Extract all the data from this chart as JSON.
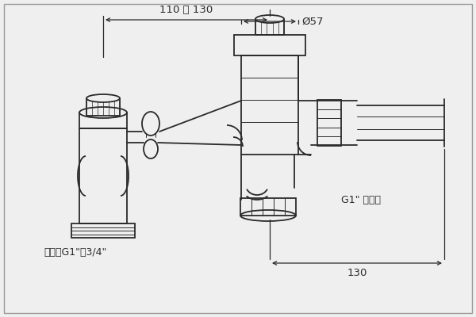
{
  "bg_color": "#efefef",
  "line_color": "#2a2a2a",
  "dim_color": "#2a2a2a",
  "dim_top_text": "110 ～ 130",
  "dim_phi_text": "Ø57",
  "dim_bottom_text": "130",
  "label_inlet": "进水口G1\"～3/4\"",
  "label_outlet": "G1\" 下水口",
  "figsize": [
    6.0,
    4.0
  ],
  "dpi": 100
}
